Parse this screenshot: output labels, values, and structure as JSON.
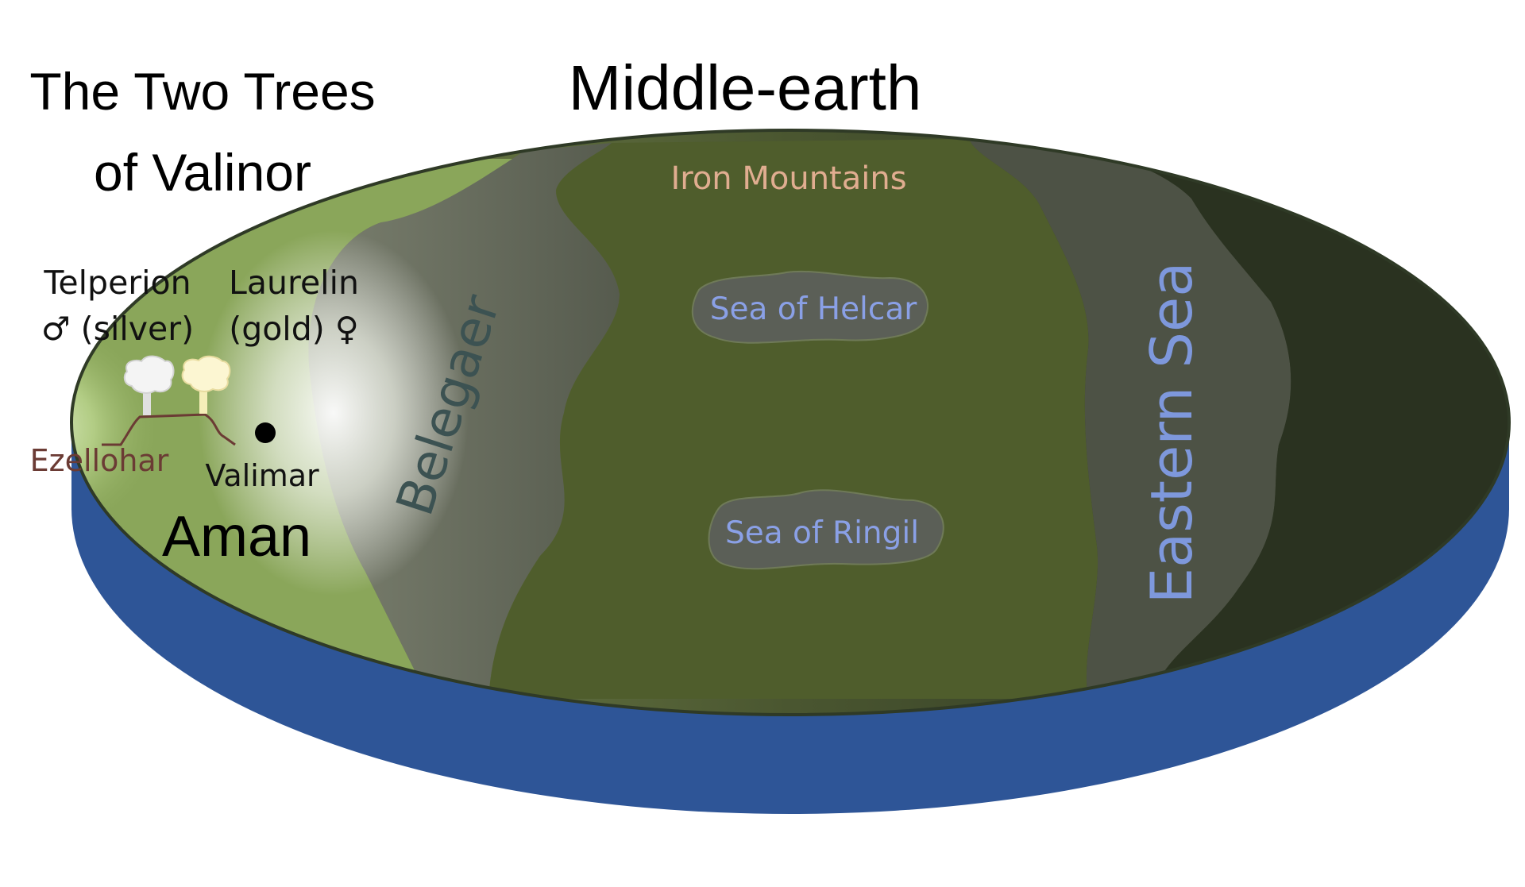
{
  "map": {
    "title": "Middle-earth",
    "trees_title_line1": "The Two Trees",
    "trees_title_line2": "of Valinor",
    "telperion_name": "Telperion",
    "telperion_desc": "♂ (silver)",
    "laurelin_name": "Laurelin",
    "laurelin_desc": "(gold) ♀",
    "ezellohar": "Ezellohar",
    "valimar": "Valimar",
    "aman": "Aman",
    "belegaer": "Belegaer",
    "iron_mountains": "Iron Mountains",
    "sea_of_helcar": "Sea of Helcar",
    "sea_of_ringil": "Sea of Ringil",
    "eastern_sea": "Eastern Sea"
  },
  "colors": {
    "disc_side": "#2e5597",
    "land_dark": "#2c3420",
    "land_green": "#4c5a2a",
    "sea_grey": "#646a5c",
    "aman_glow": "#b6d487",
    "telperion": "#f2f2f2",
    "laurelin": "#fbf5d0"
  },
  "icons": [
    "telperion-tree-icon",
    "laurelin-tree-icon",
    "valimar-city-dot-icon",
    "ezellohar-hill-icon"
  ]
}
